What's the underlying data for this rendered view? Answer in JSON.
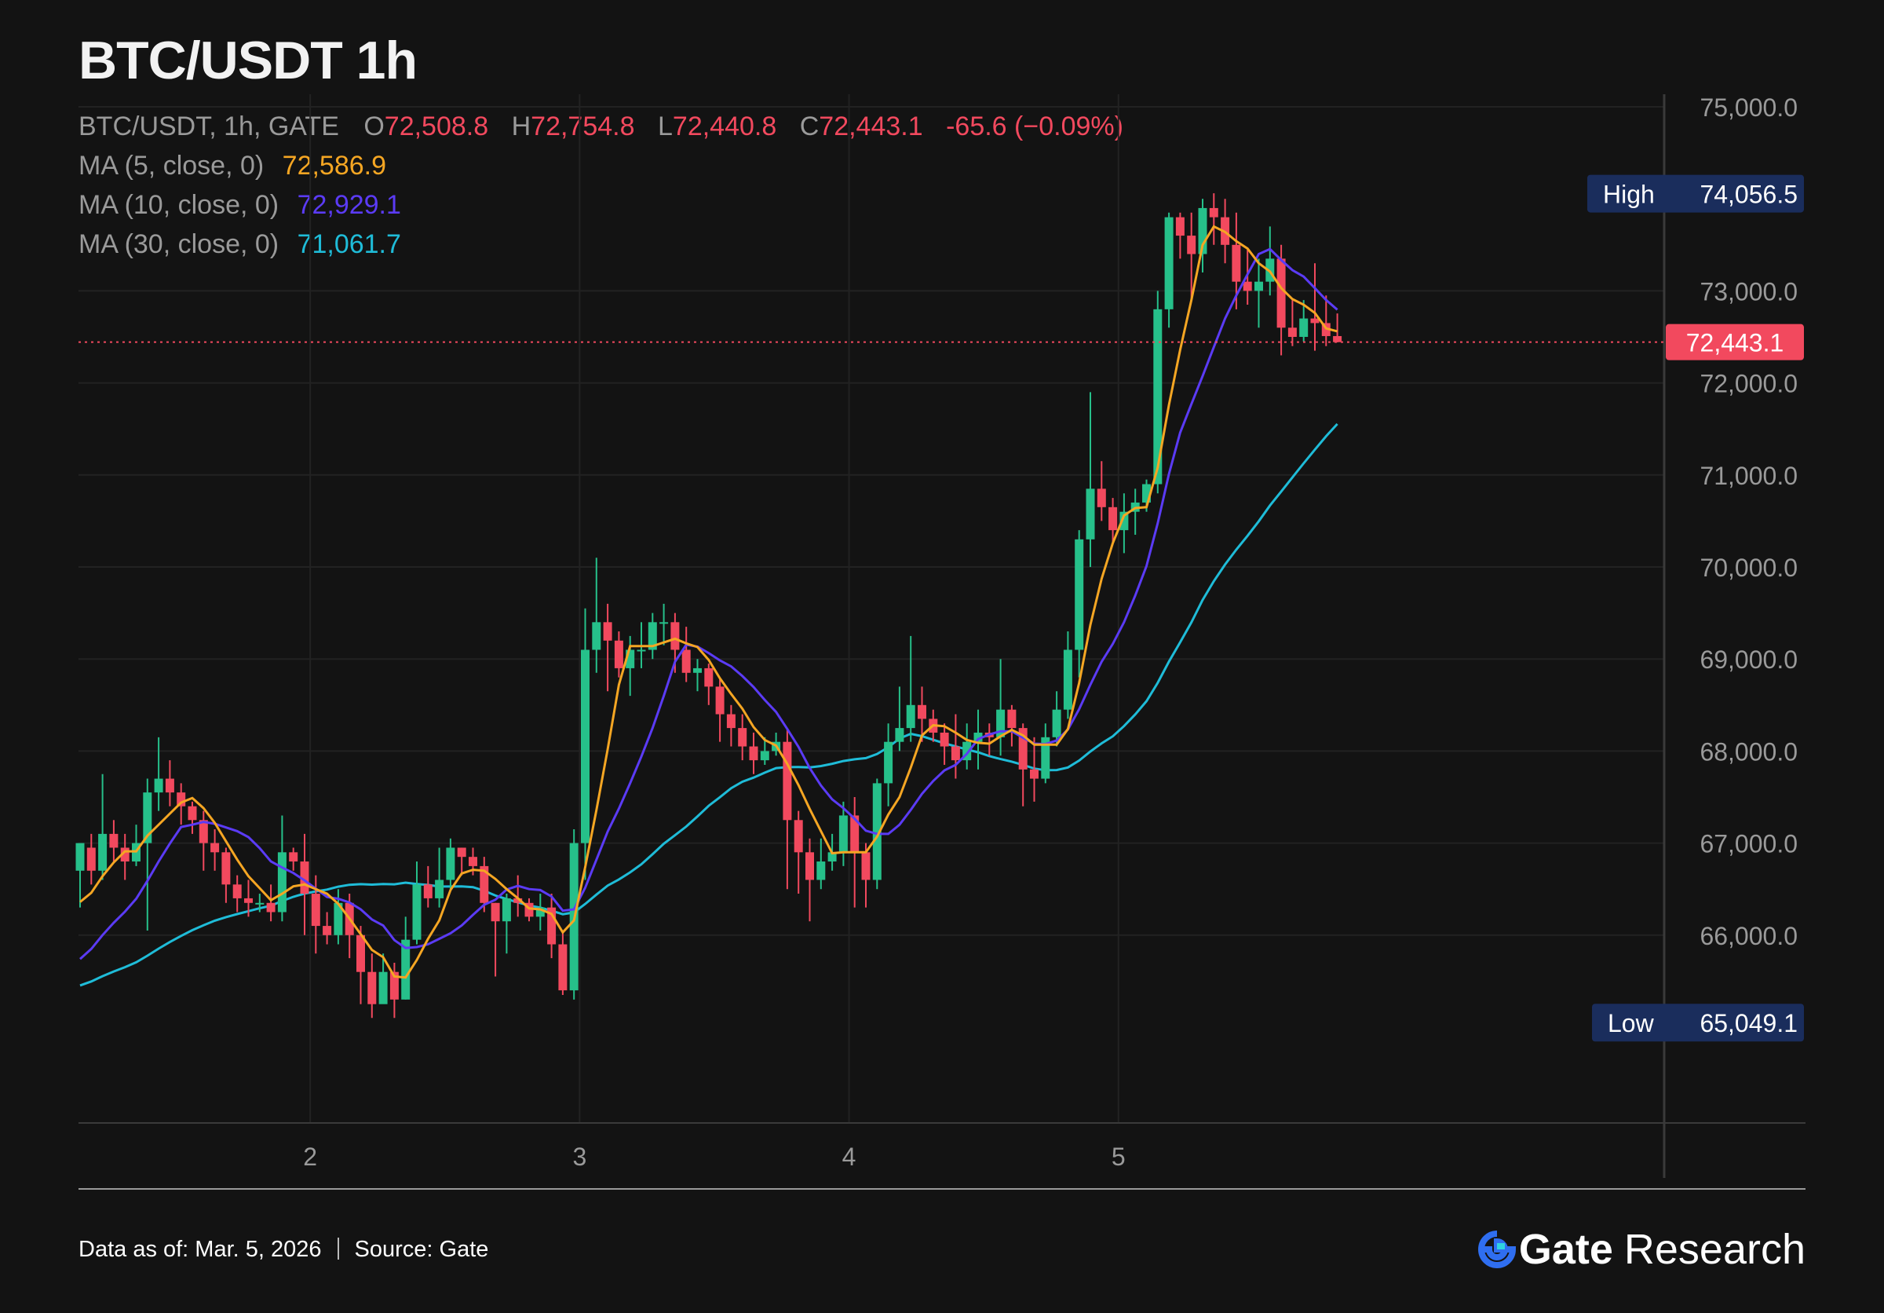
{
  "title": "BTC/USDT 1h",
  "legend": {
    "symbol": "BTC/USDT, 1h, GATE",
    "o_label": "O",
    "o_value": "72,508.8",
    "h_label": "H",
    "h_value": "72,754.8",
    "l_label": "L",
    "l_value": "72,440.8",
    "c_label": "C",
    "c_value": "72,443.1",
    "change": "-65.6 (−0.09%)",
    "ma5_label": "MA (5, close, 0)",
    "ma5_value": "72,586.9",
    "ma10_label": "MA (10, close, 0)",
    "ma10_value": "72,929.1",
    "ma30_label": "MA (30, close, 0)",
    "ma30_value": "71,061.7"
  },
  "colors": {
    "background": "#131313",
    "up": "#26c08a",
    "down": "#f2495e",
    "ma5": "#f5a623",
    "ma10": "#5b3bf5",
    "ma30": "#1fbcd8",
    "badge": "#1a2d5c",
    "grid": "#222222"
  },
  "chart_data": {
    "type": "candlestick",
    "y_range": [
      64000,
      75200
    ],
    "y_ticks": [
      {
        "value": 75000,
        "label": "75,000.0"
      },
      {
        "value": 73000,
        "label": "73,000.0"
      },
      {
        "value": 72000,
        "label": "72,000.0"
      },
      {
        "value": 71000,
        "label": "71,000.0"
      },
      {
        "value": 70000,
        "label": "70,000.0"
      },
      {
        "value": 69000,
        "label": "69,000.0"
      },
      {
        "value": 68000,
        "label": "68,000.0"
      },
      {
        "value": 67000,
        "label": "67,000.0"
      },
      {
        "value": 66000,
        "label": "66,000.0"
      }
    ],
    "x_ticks": [
      {
        "index": 20.5,
        "label": "2"
      },
      {
        "index": 44.5,
        "label": "3"
      },
      {
        "index": 68.5,
        "label": "4"
      },
      {
        "index": 92.5,
        "label": "5"
      }
    ],
    "high": {
      "label": "High",
      "value": 74056.5,
      "text": "74,056.5"
    },
    "low": {
      "label": "Low",
      "value": 65049.1,
      "text": "65,049.1"
    },
    "last_price": {
      "value": 72443.1,
      "text": "72,443.1"
    },
    "candles": [
      [
        66700,
        67000,
        66300,
        66950
      ],
      [
        66950,
        66700,
        66550,
        67100
      ],
      [
        66700,
        67100,
        66600,
        67750
      ],
      [
        67100,
        66950,
        66800,
        67250
      ],
      [
        66950,
        66800,
        66600,
        67100
      ],
      [
        66800,
        67000,
        66750,
        67200
      ],
      [
        67000,
        67550,
        66050,
        67700
      ],
      [
        67550,
        67700,
        67350,
        68150
      ],
      [
        67700,
        67550,
        67400,
        67900
      ],
      [
        67550,
        67400,
        67200,
        67650
      ],
      [
        67400,
        67250,
        67100,
        67450
      ],
      [
        67250,
        67000,
        66700,
        67350
      ],
      [
        67000,
        66900,
        66700,
        67150
      ],
      [
        66900,
        66550,
        66350,
        66950
      ],
      [
        66550,
        66400,
        66250,
        66650
      ],
      [
        66400,
        66350,
        66200,
        66600
      ],
      [
        66350,
        66350,
        66250,
        66450
      ],
      [
        66350,
        66250,
        66150,
        66550
      ],
      [
        66250,
        66900,
        66150,
        67300
      ],
      [
        66900,
        66800,
        66700,
        66950
      ],
      [
        66800,
        66450,
        66000,
        67100
      ],
      [
        66450,
        66100,
        65800,
        66650
      ],
      [
        66100,
        66000,
        65900,
        66250
      ],
      [
        66000,
        66350,
        65900,
        66500
      ],
      [
        66350,
        66000,
        65750,
        66450
      ],
      [
        66000,
        65600,
        65250,
        66100
      ],
      [
        65600,
        65250,
        65100,
        65800
      ],
      [
        65250,
        65600,
        65300,
        65800
      ],
      [
        65600,
        65300,
        65100,
        65700
      ],
      [
        65300,
        65950,
        65300,
        66200
      ],
      [
        65950,
        66550,
        65900,
        66800
      ],
      [
        66550,
        66400,
        66300,
        66750
      ],
      [
        66400,
        66600,
        66300,
        66950
      ],
      [
        66600,
        66950,
        66500,
        67050
      ],
      [
        66950,
        66850,
        66650,
        66950
      ],
      [
        66850,
        66750,
        66650,
        66950
      ],
      [
        66750,
        66350,
        66250,
        66850
      ],
      [
        66350,
        66150,
        65550,
        66350
      ],
      [
        66150,
        66400,
        65800,
        66450
      ],
      [
        66400,
        66350,
        66200,
        66650
      ],
      [
        66350,
        66200,
        66150,
        66400
      ],
      [
        66200,
        66300,
        66050,
        66450
      ],
      [
        66300,
        65900,
        65750,
        66450
      ],
      [
        65900,
        65400,
        65350,
        66050
      ],
      [
        65400,
        67000,
        65300,
        67150
      ],
      [
        67000,
        69100,
        66600,
        69550
      ],
      [
        69100,
        69400,
        68850,
        70100
      ],
      [
        69400,
        69200,
        68650,
        69600
      ],
      [
        69200,
        68900,
        68800,
        69300
      ],
      [
        68900,
        69100,
        68600,
        69250
      ],
      [
        69100,
        69100,
        68900,
        69400
      ],
      [
        69100,
        69400,
        69000,
        69500
      ],
      [
        69400,
        69400,
        69150,
        69600
      ],
      [
        69400,
        69100,
        68850,
        69500
      ],
      [
        69100,
        68850,
        68750,
        69350
      ],
      [
        68850,
        68900,
        68650,
        69000
      ],
      [
        68900,
        68700,
        68500,
        68950
      ],
      [
        68700,
        68400,
        68100,
        68800
      ],
      [
        68400,
        68250,
        68050,
        68500
      ],
      [
        68250,
        68050,
        67900,
        68400
      ],
      [
        68050,
        67900,
        67750,
        68200
      ],
      [
        67900,
        68000,
        67850,
        68150
      ],
      [
        68000,
        68100,
        67950,
        68200
      ],
      [
        68100,
        67250,
        66500,
        68250
      ],
      [
        67250,
        66900,
        66450,
        67350
      ],
      [
        66900,
        66600,
        66150,
        67050
      ],
      [
        66600,
        66800,
        66500,
        67050
      ],
      [
        66800,
        66900,
        66700,
        67100
      ],
      [
        66900,
        67300,
        66750,
        67450
      ],
      [
        67300,
        66900,
        66300,
        67500
      ],
      [
        66900,
        66600,
        66300,
        67000
      ],
      [
        66600,
        67650,
        66500,
        67700
      ],
      [
        67650,
        68100,
        67400,
        68300
      ],
      [
        68100,
        68250,
        68000,
        68700
      ],
      [
        68250,
        68500,
        68100,
        69250
      ],
      [
        68500,
        68350,
        68100,
        68700
      ],
      [
        68350,
        68200,
        68100,
        68450
      ],
      [
        68200,
        68050,
        67850,
        68300
      ],
      [
        68050,
        67900,
        67700,
        68400
      ],
      [
        67900,
        68100,
        67800,
        68300
      ],
      [
        68100,
        68200,
        67800,
        68450
      ],
      [
        68200,
        68150,
        67950,
        68300
      ],
      [
        68150,
        68450,
        67950,
        69000
      ],
      [
        68450,
        68250,
        68050,
        68500
      ],
      [
        68250,
        67800,
        67400,
        68300
      ],
      [
        67800,
        67700,
        67450,
        68150
      ],
      [
        67700,
        68150,
        67650,
        68300
      ],
      [
        68150,
        68450,
        68050,
        68650
      ],
      [
        68450,
        69100,
        68350,
        69300
      ],
      [
        69100,
        70300,
        68800,
        70400
      ],
      [
        70300,
        70850,
        70000,
        71900
      ],
      [
        70850,
        70650,
        70500,
        71150
      ],
      [
        70650,
        70400,
        70250,
        70750
      ],
      [
        70400,
        70600,
        70150,
        70800
      ],
      [
        70600,
        70700,
        70350,
        70850
      ],
      [
        70700,
        70900,
        70600,
        70950
      ],
      [
        70900,
        72800,
        70800,
        73000
      ],
      [
        72800,
        73800,
        72600,
        73850
      ],
      [
        73800,
        73600,
        73350,
        73850
      ],
      [
        73600,
        73400,
        72900,
        73850
      ],
      [
        73400,
        73900,
        73200,
        74000
      ],
      [
        73900,
        73800,
        73500,
        74060
      ],
      [
        73800,
        73500,
        73300,
        74000
      ],
      [
        73500,
        73100,
        72800,
        73850
      ],
      [
        73100,
        73000,
        72850,
        73450
      ],
      [
        73000,
        73100,
        72600,
        73350
      ],
      [
        73100,
        73350,
        72950,
        73700
      ],
      [
        73350,
        72600,
        72300,
        73500
      ],
      [
        72600,
        72500,
        72400,
        72900
      ],
      [
        72500,
        72700,
        72450,
        72900
      ],
      [
        72700,
        72650,
        72350,
        73300
      ],
      [
        72650,
        72508.8,
        72400,
        72950
      ],
      [
        72508.8,
        72443.1,
        72440.8,
        72754.8
      ]
    ]
  },
  "footer": {
    "data_as_of": "Data as of: Mar. 5, 2026",
    "source": "Source:  Gate",
    "brand_gate": "Gate",
    "brand_research": "Research"
  }
}
